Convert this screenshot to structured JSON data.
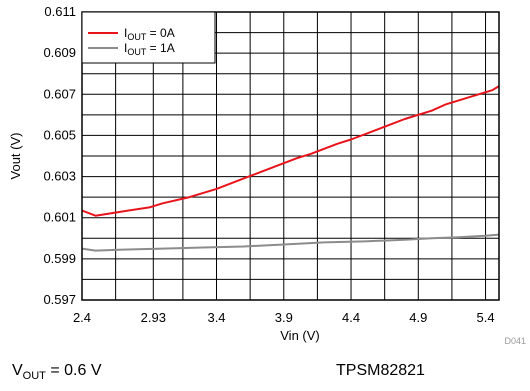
{
  "chart_data": {
    "type": "line",
    "xlabel": "Vin (V)",
    "ylabel": "Vout (V)",
    "xlim": [
      2.4,
      5.5
    ],
    "ylim": [
      0.597,
      0.611
    ],
    "x_ticks": [
      2.4,
      2.93,
      3.4,
      3.9,
      4.4,
      4.9,
      5.4
    ],
    "x_tick_labels": [
      "2.4",
      "2.93",
      "3.4",
      "3.9",
      "4.4",
      "4.9",
      "5.4"
    ],
    "y_ticks": [
      0.597,
      0.599,
      0.601,
      0.603,
      0.605,
      0.607,
      0.609,
      0.611
    ],
    "y_tick_labels": [
      "0.597",
      "0.599",
      "0.601",
      "0.603",
      "0.605",
      "0.607",
      "0.609",
      "0.611"
    ],
    "x_gridlines": [
      2.4,
      2.65,
      2.93,
      3.15,
      3.4,
      3.65,
      3.9,
      4.15,
      4.4,
      4.65,
      4.9,
      5.15,
      5.4
    ],
    "y_gridlines": [
      0.597,
      0.598,
      0.599,
      0.6,
      0.601,
      0.602,
      0.603,
      0.604,
      0.605,
      0.606,
      0.607,
      0.608,
      0.609,
      0.61,
      0.611
    ],
    "grid": true,
    "legend_position": "top-left",
    "series": [
      {
        "name_main": "I",
        "name_sub": "OUT",
        "name_rest": " = 0A",
        "color": "#e8141c",
        "x": [
          2.4,
          2.5,
          2.7,
          2.9,
          3.0,
          3.2,
          3.4,
          3.6,
          3.8,
          4.0,
          4.1,
          4.3,
          4.4,
          4.6,
          4.8,
          5.0,
          5.1,
          5.3,
          5.45,
          5.5
        ],
        "y": [
          0.60135,
          0.6011,
          0.6013,
          0.6015,
          0.6017,
          0.602,
          0.6024,
          0.6029,
          0.6034,
          0.6039,
          0.6041,
          0.6046,
          0.6048,
          0.6053,
          0.6058,
          0.6062,
          0.6065,
          0.6069,
          0.6072,
          0.6074
        ]
      },
      {
        "name_main": "I",
        "name_sub": "OUT",
        "name_rest": " = 1A",
        "color": "#8c8c8c",
        "x": [
          2.4,
          2.5,
          2.7,
          3.0,
          3.3,
          3.6,
          3.9,
          4.2,
          4.5,
          4.8,
          5.0,
          5.2,
          5.4,
          5.5
        ],
        "y": [
          0.5995,
          0.5994,
          0.59945,
          0.5995,
          0.59955,
          0.5996,
          0.5997,
          0.5998,
          0.59985,
          0.59993,
          0.6,
          0.60005,
          0.60012,
          0.60018
        ]
      }
    ],
    "code_label": "D041"
  },
  "captions": {
    "left_main": "V",
    "left_sub": "OUT",
    "left_rest": " = 0.6 V",
    "right": "TPSM82821"
  }
}
